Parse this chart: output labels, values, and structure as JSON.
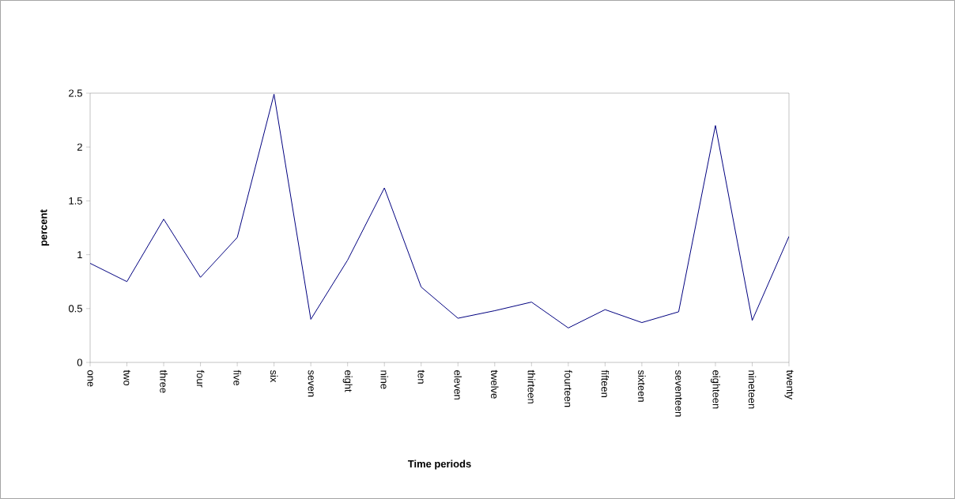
{
  "chart_data": {
    "type": "line",
    "xlabel": "Time periods",
    "ylabel": "percent",
    "categories": [
      "one",
      "two",
      "three",
      "four",
      "five",
      "six",
      "seven",
      "eight",
      "nine",
      "ten",
      "eleven",
      "twelve",
      "thirteen",
      "fourteen",
      "fifteen",
      "sixteen",
      "seventeen",
      "eighteen",
      "nineteen",
      "twenty"
    ],
    "series": [
      {
        "color": "#000080",
        "values": [
          0.92,
          0.75,
          1.33,
          0.79,
          1.16,
          2.49,
          0.4,
          0.95,
          1.62,
          0.7,
          0.41,
          0.48,
          0.56,
          0.32,
          0.49,
          0.37,
          0.47,
          2.2,
          0.39,
          1.17
        ]
      }
    ],
    "ylim": [
      0,
      2.5
    ],
    "yticks": [
      0,
      0.5,
      1,
      1.5,
      2,
      2.5
    ],
    "marker": "none",
    "line_style": "solid"
  }
}
